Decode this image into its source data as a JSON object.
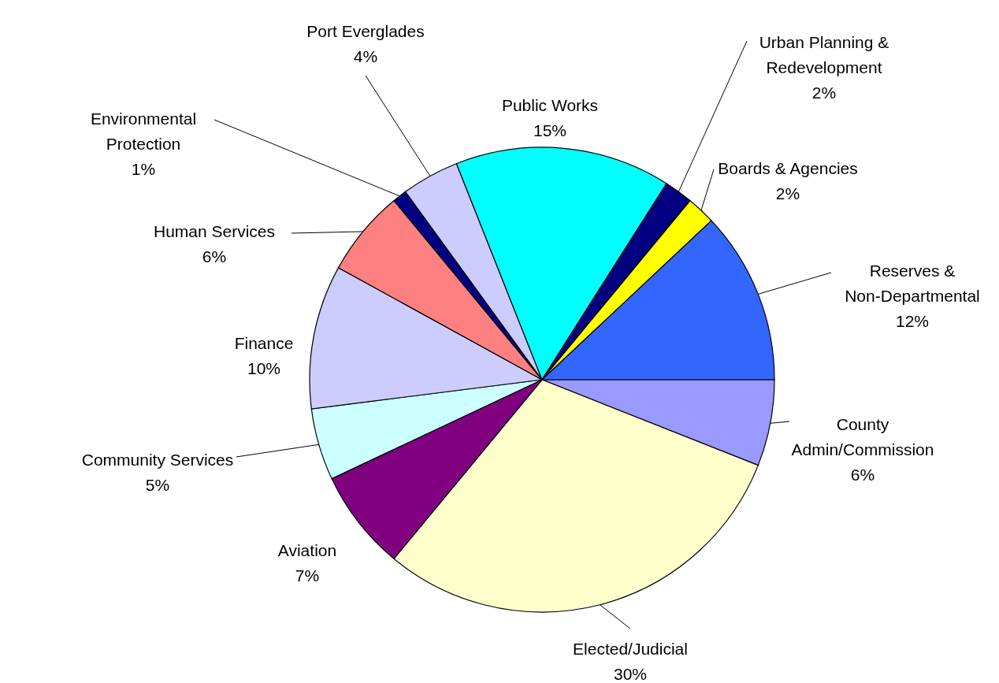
{
  "chart_data": {
    "type": "pie",
    "categories": [
      "County Admin/Commission",
      "Elected/Judicial",
      "Aviation",
      "Community Services",
      "Finance",
      "Human Services",
      "Environmental Protection",
      "Port Everglades",
      "Public Works",
      "Urban Planning & Redevelopment",
      "Boards & Agencies",
      "Reserves & Non-Departmental"
    ],
    "values": [
      6,
      30,
      7,
      5,
      10,
      6,
      1,
      4,
      15,
      2,
      2,
      12
    ],
    "value_labels": [
      "6%",
      "30%",
      "7%",
      "5%",
      "10%",
      "6%",
      "1%",
      "4%",
      "15%",
      "2%",
      "2%",
      "12%"
    ],
    "colors": [
      "#9999ff",
      "#ffffcc",
      "#800080",
      "#ccffff",
      "#ccccff",
      "#ff8080",
      "#000080",
      "#ccccff",
      "#00ffff",
      "#000080",
      "#ffff00",
      "#3366ff"
    ]
  }
}
